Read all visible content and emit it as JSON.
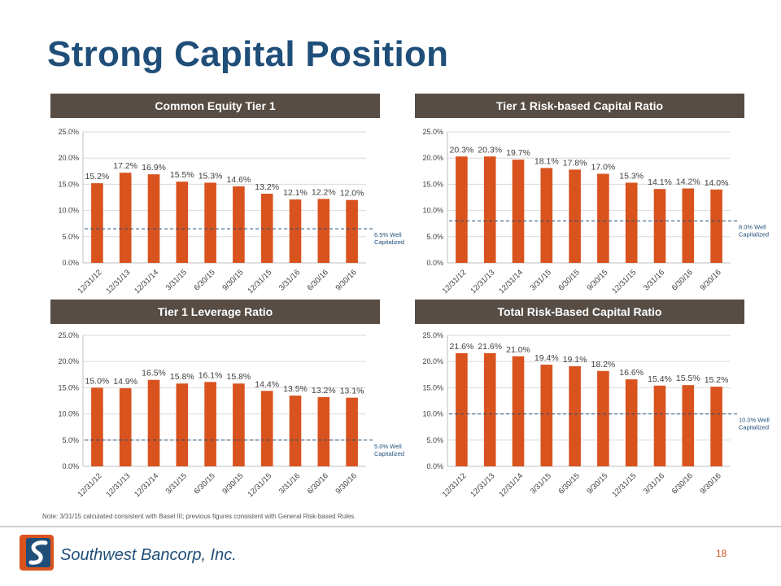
{
  "title": "Strong Capital Position",
  "note": "Note: 3/31/15 calculated consistent with Basel III; previous figures consistent with General Risk-based Rules.",
  "page_number": "18",
  "logo_text": "Southwest Bancorp, Inc.",
  "colors": {
    "bar": "#d9531e",
    "threshold": "#1f4e79",
    "header": "#574d45",
    "title": "#1f4e79"
  },
  "chart_data": [
    {
      "type": "bar",
      "title": "Common Equity Tier 1",
      "categories": [
        "12/31/12",
        "12/31/13",
        "12/31/14",
        "3/31/15",
        "6/30/15",
        "9/30/15",
        "12/31/15",
        "3/31/16",
        "6/30/16",
        "9/30/16"
      ],
      "values": [
        15.2,
        17.2,
        16.9,
        15.5,
        15.3,
        14.6,
        13.2,
        12.1,
        12.2,
        12.0
      ],
      "value_labels": [
        "15.2%",
        "17.2%",
        "16.9%",
        "15.5%",
        "15.3%",
        "14.6%",
        "13.2%",
        "12.1%",
        "12.2%",
        "12.0%"
      ],
      "yticks": [
        "0.0%",
        "5.0%",
        "10.0%",
        "15.0%",
        "20.0%",
        "25.0%"
      ],
      "ylim": [
        0,
        25
      ],
      "threshold": {
        "value": 6.5,
        "label_1": "6.5% Well",
        "label_2": "Capitalized"
      }
    },
    {
      "type": "bar",
      "title": "Tier 1 Risk-based Capital Ratio",
      "categories": [
        "12/31/12",
        "12/31/13",
        "12/31/14",
        "3/31/15",
        "6/30/15",
        "9/30/15",
        "12/31/15",
        "3/31/16",
        "6/30/16",
        "9/30/16"
      ],
      "values": [
        20.3,
        20.3,
        19.7,
        18.1,
        17.8,
        17.0,
        15.3,
        14.1,
        14.2,
        14.0
      ],
      "value_labels": [
        "20.3%",
        "20.3%",
        "19.7%",
        "18.1%",
        "17.8%",
        "17.0%",
        "15.3%",
        "14.1%",
        "14.2%",
        "14.0%"
      ],
      "yticks": [
        "0.0%",
        "5.0%",
        "10.0%",
        "15.0%",
        "20.0%",
        "25.0%"
      ],
      "ylim": [
        0,
        25
      ],
      "threshold": {
        "value": 8.0,
        "label_1": "8.0% Well",
        "label_2": "Capitalized"
      }
    },
    {
      "type": "bar",
      "title": "Tier 1 Leverage Ratio",
      "categories": [
        "12/31/12",
        "12/31/13",
        "12/31/14",
        "3/31/15",
        "6/30/15",
        "9/30/15",
        "12/31/15",
        "3/31/16",
        "6/30/16",
        "9/30/16"
      ],
      "values": [
        15.0,
        14.9,
        16.5,
        15.8,
        16.1,
        15.8,
        14.4,
        13.5,
        13.2,
        13.1
      ],
      "value_labels": [
        "15.0%",
        "14.9%",
        "16.5%",
        "15.8%",
        "16.1%",
        "15.8%",
        "14.4%",
        "13.5%",
        "13.2%",
        "13.1%"
      ],
      "yticks": [
        "0.0%",
        "5.0%",
        "10.0%",
        "15.0%",
        "20.0%",
        "25.0%"
      ],
      "ylim": [
        0,
        25
      ],
      "threshold": {
        "value": 5.0,
        "label_1": "5.0% Well",
        "label_2": "Capitalized"
      }
    },
    {
      "type": "bar",
      "title": "Total Risk-Based Capital Ratio",
      "categories": [
        "12/31/12",
        "12/31/13",
        "12/31/14",
        "3/31/15",
        "6/30/15",
        "9/30/15",
        "12/31/15",
        "3/31/16",
        "6/30/16",
        "9/30/16"
      ],
      "values": [
        21.6,
        21.6,
        21.0,
        19.4,
        19.1,
        18.2,
        16.6,
        15.4,
        15.5,
        15.2
      ],
      "value_labels": [
        "21.6%",
        "21.6%",
        "21.0%",
        "19.4%",
        "19.1%",
        "18.2%",
        "16.6%",
        "15.4%",
        "15.5%",
        "15.2%"
      ],
      "yticks": [
        "0.0%",
        "5.0%",
        "10.0%",
        "15.0%",
        "20.0%",
        "25.0%"
      ],
      "ylim": [
        0,
        25
      ],
      "threshold": {
        "value": 10.0,
        "label_1": "10.0% Well",
        "label_2": "Capitalized"
      }
    }
  ]
}
